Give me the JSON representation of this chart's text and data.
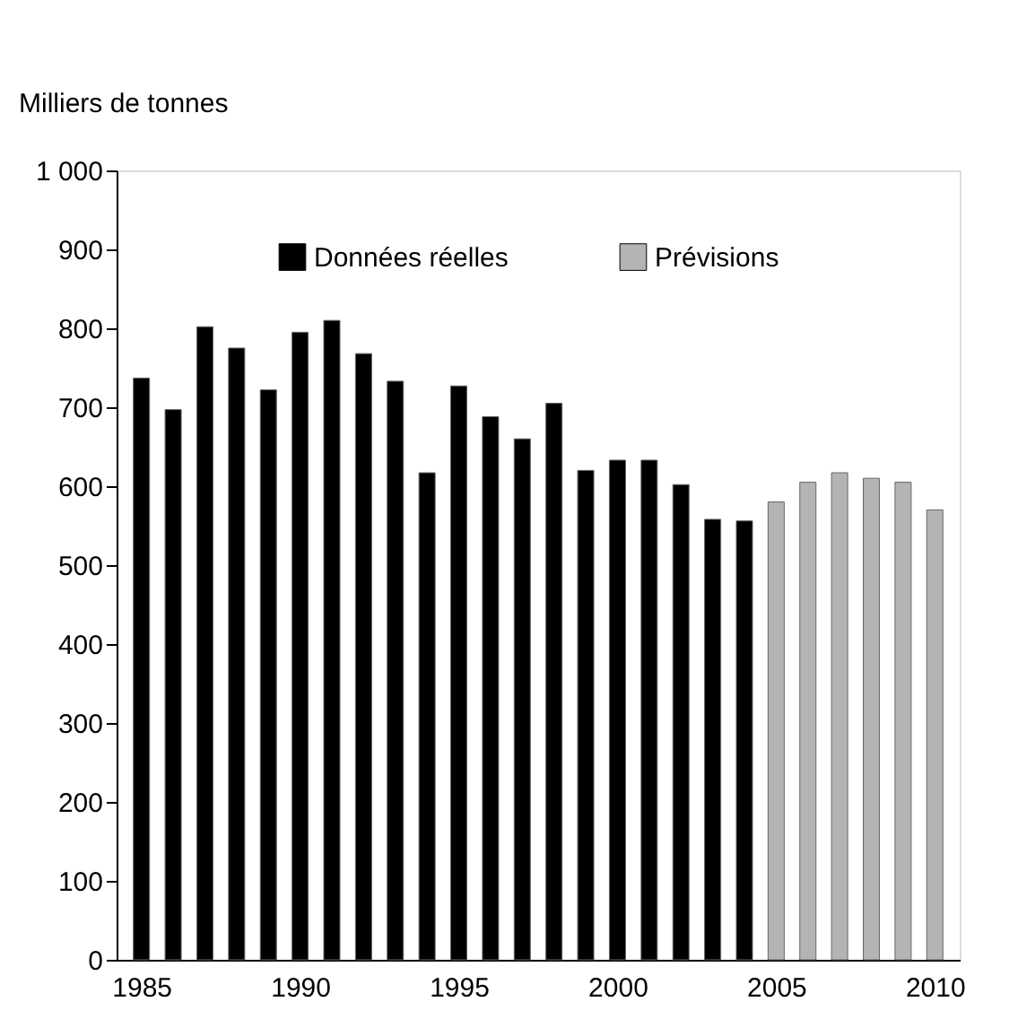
{
  "chart_data": {
    "type": "bar",
    "ylabel": "Milliers de tonnes",
    "series": [
      {
        "name": "Données réelles",
        "color": "#000000",
        "x": [
          1985,
          1986,
          1987,
          1988,
          1989,
          1990,
          1991,
          1992,
          1993,
          1994,
          1995,
          1996,
          1997,
          1998,
          1999,
          2000,
          2001,
          2002,
          2003,
          2004
        ],
        "values": [
          737,
          697,
          802,
          775,
          722,
          795,
          810,
          768,
          733,
          617,
          727,
          688,
          660,
          705,
          620,
          633,
          633,
          602,
          558,
          556
        ]
      },
      {
        "name": "Prévisions",
        "color": "#b4b4b4",
        "x": [
          2005,
          2006,
          2007,
          2008,
          2009,
          2010
        ],
        "values": [
          580,
          605,
          617,
          610,
          605,
          570
        ]
      }
    ],
    "xlim": [
      1984.5,
      2010.5
    ],
    "xticks": [
      1985,
      1990,
      1995,
      2000,
      2005,
      2010
    ],
    "ylim": [
      0,
      1000
    ],
    "yticks": [
      0,
      100,
      200,
      300,
      400,
      500,
      600,
      700,
      800,
      900,
      {
        "value": 1000,
        "label": "1 000"
      }
    ],
    "grid": false,
    "legend": "top"
  }
}
